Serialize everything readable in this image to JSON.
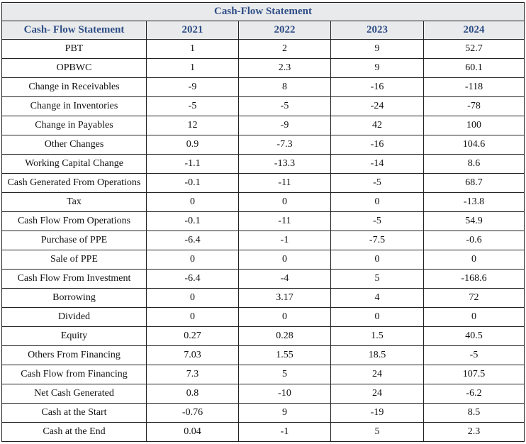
{
  "title": "Cash-Flow Statement",
  "columns": [
    "Cash- Flow Statement",
    "2021",
    "2022",
    "2023",
    "2024"
  ],
  "rows": [
    {
      "label": "PBT",
      "values": [
        "1",
        "2",
        "9",
        "52.7"
      ]
    },
    {
      "label": "OPBWC",
      "values": [
        "1",
        "2.3",
        "9",
        "60.1"
      ]
    },
    {
      "label": "Change in Receivables",
      "values": [
        "-9",
        "8",
        "-16",
        "-118"
      ]
    },
    {
      "label": "Change in Inventories",
      "values": [
        "-5",
        "-5",
        "-24",
        "-78"
      ]
    },
    {
      "label": "Change in Payables",
      "values": [
        "12",
        "-9",
        "42",
        "100"
      ]
    },
    {
      "label": "Other Changes",
      "values": [
        "0.9",
        "-7.3",
        "-16",
        "104.6"
      ]
    },
    {
      "label": "Working Capital Change",
      "values": [
        "-1.1",
        "-13.3",
        "-14",
        "8.6"
      ]
    },
    {
      "label": "Cash Generated From Operations",
      "values": [
        "-0.1",
        "-11",
        "-5",
        "68.7"
      ]
    },
    {
      "label": "Tax",
      "values": [
        "0",
        "0",
        "0",
        "-13.8"
      ]
    },
    {
      "label": "Cash Flow From Operations",
      "values": [
        "-0.1",
        "-11",
        "-5",
        "54.9"
      ]
    },
    {
      "label": "Purchase of PPE",
      "values": [
        "-6.4",
        "-1",
        "-7.5",
        "-0.6"
      ]
    },
    {
      "label": "Sale of PPE",
      "values": [
        "0",
        "0",
        "0",
        "0"
      ]
    },
    {
      "label": "Cash Flow From Investment",
      "values": [
        "-6.4",
        "-4",
        "5",
        "-168.6"
      ]
    },
    {
      "label": "Borrowing",
      "values": [
        "0",
        "3.17",
        "4",
        "72"
      ]
    },
    {
      "label": "Divided",
      "values": [
        "0",
        "0",
        "0",
        "0"
      ]
    },
    {
      "label": "Equity",
      "values": [
        "0.27",
        "0.28",
        "1.5",
        "40.5"
      ]
    },
    {
      "label": "Others From Financing",
      "values": [
        "7.03",
        "1.55",
        "18.5",
        "-5"
      ]
    },
    {
      "label": "Cash Flow from Financing",
      "values": [
        "7.3",
        "5",
        "24",
        "107.5"
      ]
    },
    {
      "label": "Net Cash Generated",
      "values": [
        "0.8",
        "-10",
        "24",
        "-6.2"
      ]
    },
    {
      "label": "Cash at the Start",
      "values": [
        "-0.76",
        "9",
        "-19",
        "8.5"
      ]
    },
    {
      "label": "Cash at the End",
      "values": [
        "0.04",
        "-1",
        "5",
        "2.3"
      ]
    }
  ]
}
